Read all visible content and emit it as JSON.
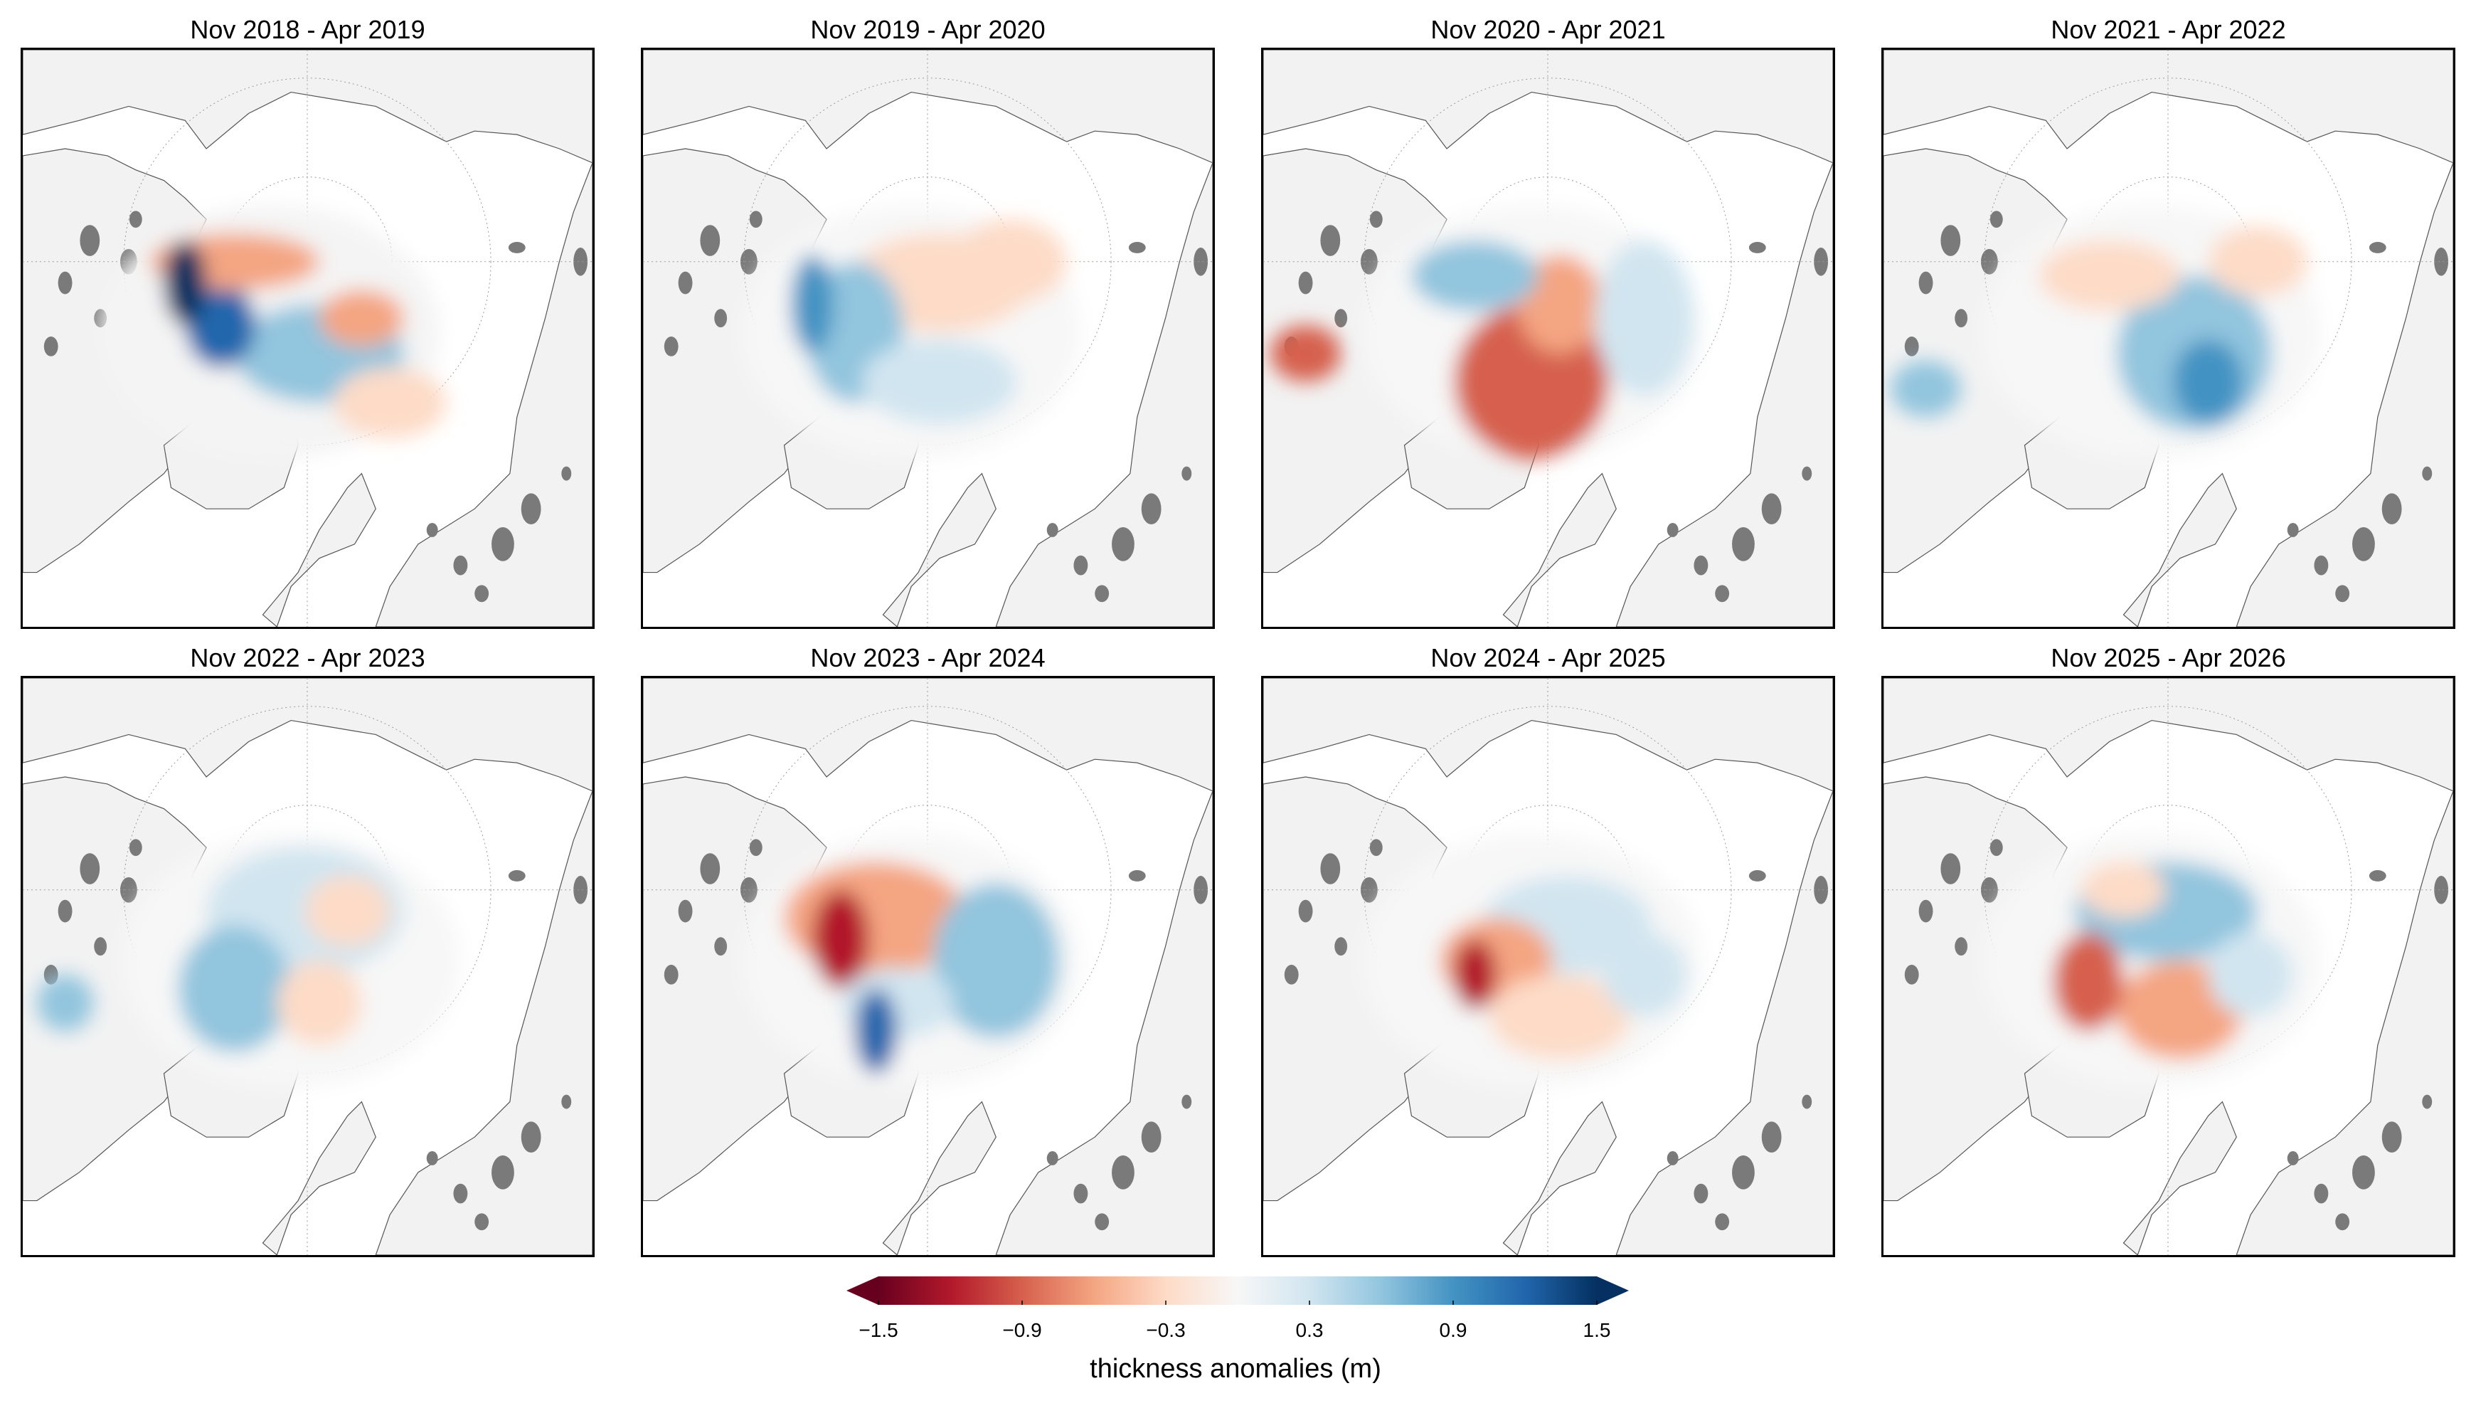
{
  "panels": [
    {
      "title": "Nov 2018 - Apr 2019"
    },
    {
      "title": "Nov 2019 - Apr 2020"
    },
    {
      "title": "Nov 2020 - Apr 2021"
    },
    {
      "title": "Nov 2021 - Apr 2022"
    },
    {
      "title": "Nov 2022 - Apr 2023"
    },
    {
      "title": "Nov 2023 - Apr 2024"
    },
    {
      "title": "Nov 2024 - Apr 2025"
    },
    {
      "title": "Nov 2025 - Apr 2026"
    }
  ],
  "colorbar": {
    "label": "thickness anomalies (m)",
    "ticks": [
      "−1.5",
      "−0.9",
      "−0.3",
      "0.3",
      "0.9",
      "1.5"
    ],
    "range": [
      -1.5,
      1.5
    ],
    "extend": "both",
    "colors": [
      "#67001f",
      "#b2182b",
      "#d6604d",
      "#f4a582",
      "#fddbc7",
      "#f7f7f7",
      "#d1e5f0",
      "#92c5de",
      "#4393c3",
      "#2166ac",
      "#053061"
    ]
  },
  "map_colors": {
    "land": "#f2f2f2",
    "glacier": "#7a7a7a",
    "ocean": "#ffffff"
  }
}
